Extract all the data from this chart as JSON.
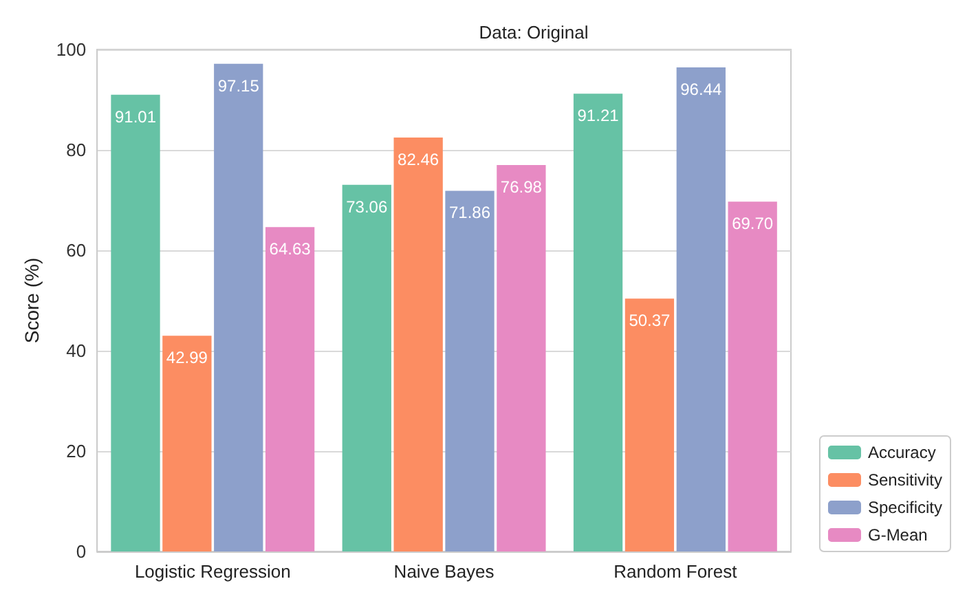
{
  "chart_data": {
    "type": "bar",
    "title": "Data: Original",
    "ylabel": "Score (%)",
    "categories": [
      "Logistic Regression",
      "Naive Bayes",
      "Random Forest"
    ],
    "series": [
      {
        "name": "Accuracy",
        "color": "#66c2a5",
        "values": [
          91.01,
          73.06,
          91.21
        ],
        "value_labels": [
          "91.01",
          "73.06",
          "91.21"
        ]
      },
      {
        "name": "Sensitivity",
        "color": "#fc8d62",
        "values": [
          42.99,
          82.46,
          50.37
        ],
        "value_labels": [
          "42.99",
          "82.46",
          "50.37"
        ]
      },
      {
        "name": "Specificity",
        "color": "#8da0cb",
        "values": [
          97.15,
          71.86,
          96.44
        ],
        "value_labels": [
          "97.15",
          "71.86",
          "96.44"
        ]
      },
      {
        "name": "G-Mean",
        "color": "#e78ac3",
        "values": [
          64.63,
          76.98,
          69.7
        ],
        "value_labels": [
          "64.63",
          "76.98",
          "69.70"
        ]
      }
    ],
    "ylim": [
      0,
      100
    ],
    "yticks": [
      0,
      20,
      40,
      60,
      80,
      100
    ],
    "grid": "y",
    "legend": "bottom right"
  }
}
